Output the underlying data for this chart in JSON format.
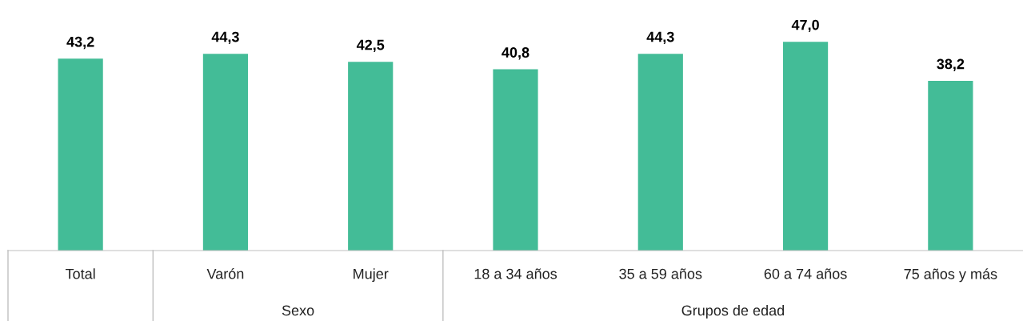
{
  "chart_data": {
    "type": "bar",
    "categories": [
      "Total",
      "Varón",
      "Mujer",
      "18 a 34 años",
      "35 a 59 años",
      "60 a 74 años",
      "75 años y más"
    ],
    "values": [
      43.2,
      44.3,
      42.5,
      40.8,
      44.3,
      47.0,
      38.2
    ],
    "value_labels": [
      "43,2",
      "44,3",
      "42,5",
      "40,8",
      "44,3",
      "47,0",
      "38,2"
    ],
    "color": "#43bc97",
    "annotations": [
      "Sexo",
      "Grupos de edad"
    ],
    "grid": false,
    "legend": false
  }
}
